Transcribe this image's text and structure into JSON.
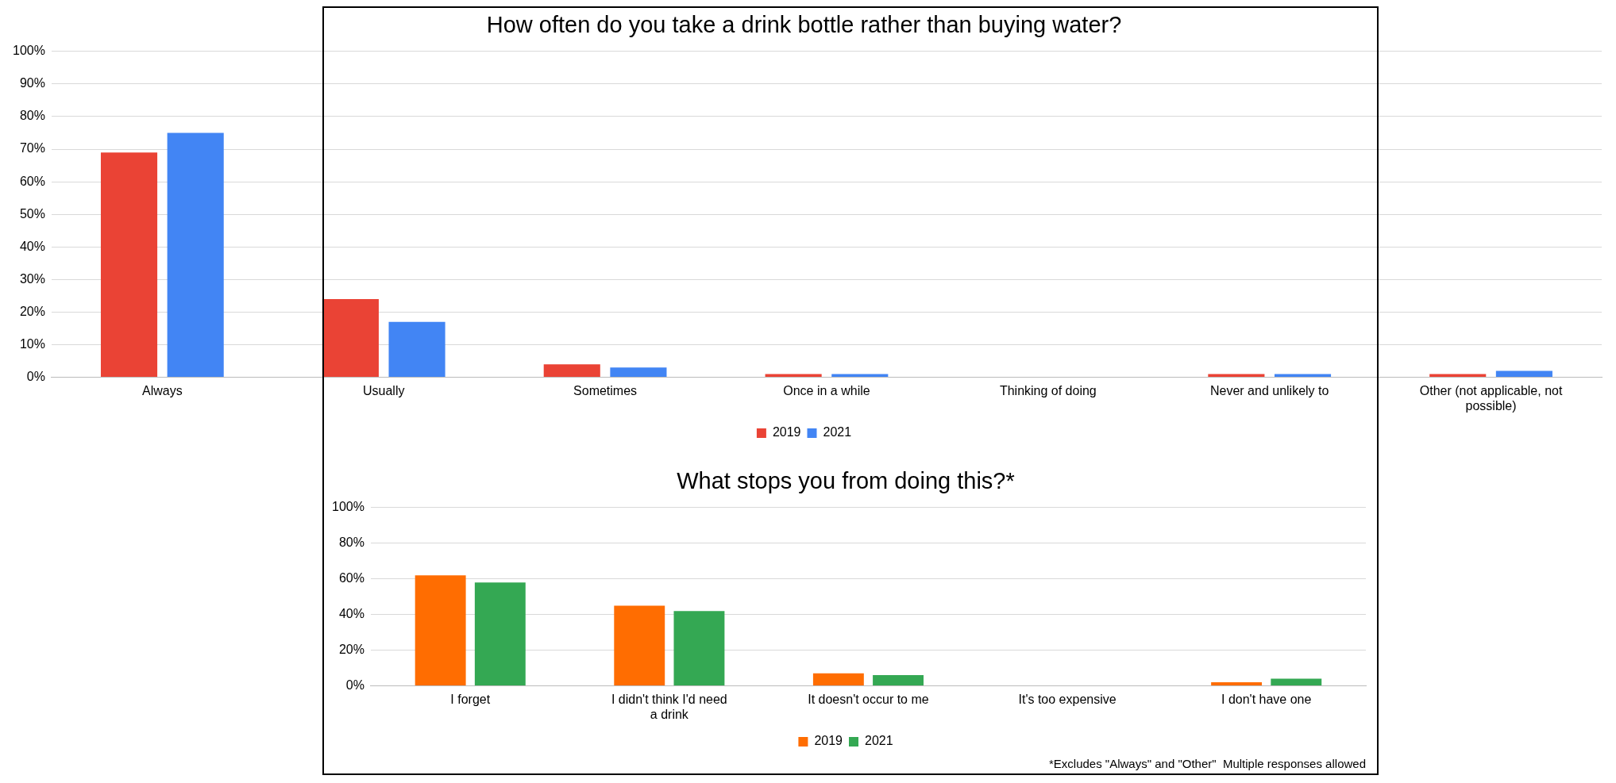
{
  "chart_data": [
    {
      "type": "bar",
      "title": "How often do you take a drink bottle rather than buying water?",
      "categories": [
        "Always",
        "Usually",
        "Sometimes",
        "Once in a while",
        "Thinking of doing",
        "Never and unlikely to",
        "Other (not applicable, not possible)"
      ],
      "series": [
        {
          "name": "2019",
          "color": "#ea4335",
          "values": [
            69,
            24,
            4,
            1,
            0,
            1,
            1
          ]
        },
        {
          "name": "2021",
          "color": "#4285f4",
          "values": [
            75,
            17,
            3,
            1,
            0,
            1,
            2
          ]
        }
      ],
      "ylim": [
        0,
        100
      ],
      "yticks": [
        {
          "value": 0,
          "label": "0%"
        },
        {
          "value": 10,
          "label": "10%"
        },
        {
          "value": 20,
          "label": "20%"
        },
        {
          "value": 30,
          "label": "30%"
        },
        {
          "value": 40,
          "label": "40%"
        },
        {
          "value": 50,
          "label": "50%"
        },
        {
          "value": 60,
          "label": "60%"
        },
        {
          "value": 70,
          "label": "70%"
        },
        {
          "value": 80,
          "label": "80%"
        },
        {
          "value": 90,
          "label": "90%"
        },
        {
          "value": 100,
          "label": "100%"
        }
      ],
      "grid": "y",
      "legend": "bottom"
    },
    {
      "type": "bar",
      "title": "What stops you from doing this?*",
      "categories": [
        "I forget",
        "I didn't think I'd need a drink",
        "It doesn't occur to me",
        "It's too expensive",
        "I don't have one"
      ],
      "series": [
        {
          "name": "2019",
          "color": "#ff6d01",
          "values": [
            62,
            45,
            7,
            0,
            2
          ]
        },
        {
          "name": "2021",
          "color": "#34a853",
          "values": [
            58,
            42,
            6,
            0,
            4
          ]
        }
      ],
      "ylim": [
        0,
        100
      ],
      "yticks": [
        {
          "value": 0,
          "label": "0%"
        },
        {
          "value": 20,
          "label": "20%"
        },
        {
          "value": 40,
          "label": "40%"
        },
        {
          "value": 60,
          "label": "60%"
        },
        {
          "value": 80,
          "label": "80%"
        },
        {
          "value": 100,
          "label": "100%"
        }
      ],
      "grid": "y",
      "legend": "bottom",
      "annotations": [
        "*Excludes \"Always\" and \"Other\"  Multiple responses allowed"
      ]
    }
  ]
}
